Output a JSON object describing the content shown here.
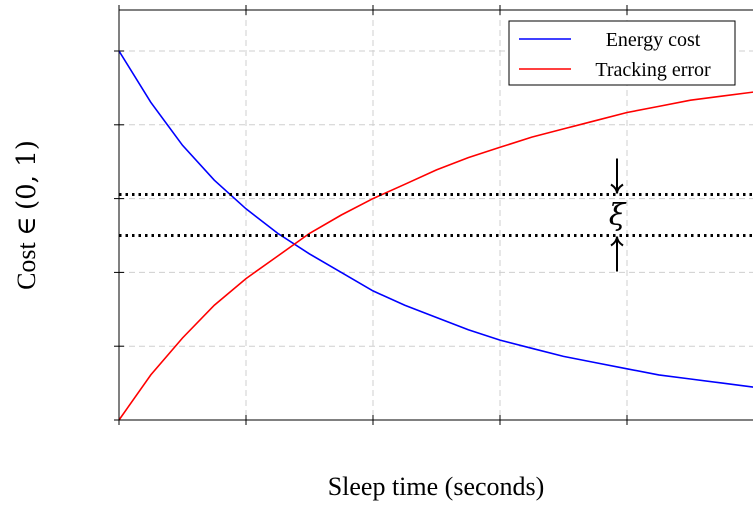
{
  "chart_data": {
    "type": "line",
    "title": "",
    "xlabel": "Sleep time (seconds)",
    "ylabel_prefix": "Cost ∈ ",
    "ylabel_math": "(0, 1)",
    "xlim": [
      0,
      5
    ],
    "ylim": [
      0,
      1
    ],
    "grid": true,
    "legend_position": "top-right",
    "x": [
      0,
      0.25,
      0.5,
      0.75,
      1,
      1.25,
      1.5,
      1.75,
      2,
      2.25,
      2.5,
      2.75,
      3,
      3.25,
      3.5,
      3.75,
      4,
      4.25,
      4.5,
      4.75,
      5
    ],
    "series": [
      {
        "name": "Energy cost",
        "color": "#0000ff",
        "values": [
          0.9,
          0.775,
          0.67,
          0.585,
          0.515,
          0.455,
          0.405,
          0.36,
          0.315,
          0.28,
          0.25,
          0.22,
          0.195,
          0.175,
          0.155,
          0.14,
          0.125,
          0.11,
          0.1,
          0.09,
          0.08
        ]
      },
      {
        "name": "Tracking error",
        "color": "#ff0000",
        "values": [
          0.0,
          0.11,
          0.2,
          0.28,
          0.345,
          0.4,
          0.455,
          0.5,
          0.54,
          0.575,
          0.61,
          0.64,
          0.665,
          0.69,
          0.71,
          0.73,
          0.75,
          0.765,
          0.78,
          0.79,
          0.8
        ]
      }
    ],
    "annotation": {
      "symbol": "ξ",
      "upper_level": 0.55,
      "lower_level": 0.45
    }
  }
}
